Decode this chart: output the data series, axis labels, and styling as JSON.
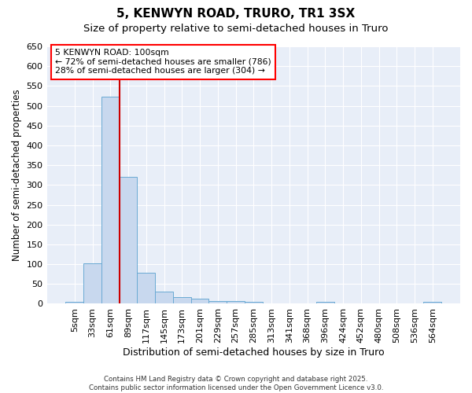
{
  "title": "5, KENWYN ROAD, TRURO, TR1 3SX",
  "subtitle": "Size of property relative to semi-detached houses in Truro",
  "xlabel": "Distribution of semi-detached houses by size in Truro",
  "ylabel": "Number of semi-detached properties",
  "bar_labels": [
    "5sqm",
    "33sqm",
    "61sqm",
    "89sqm",
    "117sqm",
    "145sqm",
    "173sqm",
    "201sqm",
    "229sqm",
    "257sqm",
    "285sqm",
    "313sqm",
    "341sqm",
    "368sqm",
    "396sqm",
    "424sqm",
    "452sqm",
    "480sqm",
    "508sqm",
    "536sqm",
    "564sqm"
  ],
  "bar_values": [
    5,
    103,
    522,
    320,
    79,
    31,
    17,
    13,
    6,
    7,
    5,
    0,
    0,
    0,
    5,
    0,
    0,
    0,
    0,
    0,
    5
  ],
  "bar_color": "#c8d8ee",
  "bar_edge_color": "#6aaad4",
  "vline_x_index": 2.5,
  "vline_color": "#cc0000",
  "annotation_text": "5 KENWYN ROAD: 100sqm\n← 72% of semi-detached houses are smaller (786)\n28% of semi-detached houses are larger (304) →",
  "ylim": [
    0,
    650
  ],
  "yticks": [
    0,
    50,
    100,
    150,
    200,
    250,
    300,
    350,
    400,
    450,
    500,
    550,
    600,
    650
  ],
  "background_color": "#e8eef8",
  "grid_color": "#ffffff",
  "title_fontsize": 11,
  "subtitle_fontsize": 9.5,
  "xlabel_fontsize": 9,
  "ylabel_fontsize": 8.5,
  "tick_fontsize": 8,
  "footer_text": "Contains HM Land Registry data © Crown copyright and database right 2025.\nContains public sector information licensed under the Open Government Licence v3.0."
}
